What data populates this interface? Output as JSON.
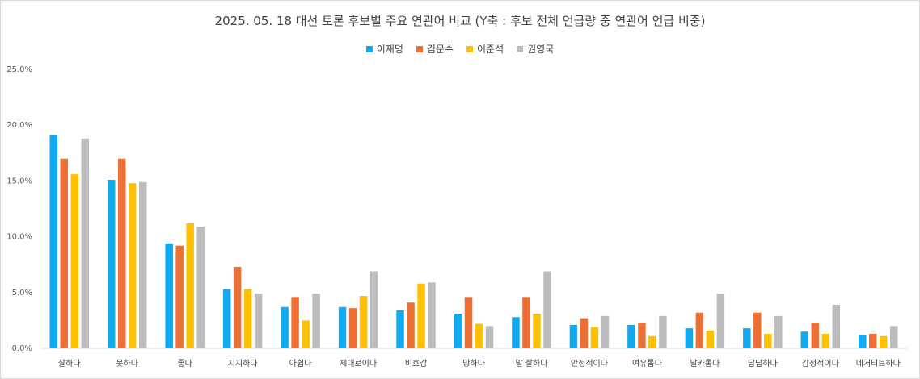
{
  "chart_data": {
    "type": "bar",
    "title": "2025. 05. 18  대선 토론 후보별 주요 연관어 비교 (Y축 : 후보 전체 언급량 중 연관어 언급 비중)",
    "categories": [
      "잘하다",
      "못하다",
      "좋다",
      "지지하다",
      "아쉽다",
      "제대로이다",
      "비호감",
      "망하다",
      "말 잘하다",
      "안정적이다",
      "여유롭다",
      "날카롭다",
      "답답하다",
      "감정적이다",
      "네거티브하다"
    ],
    "series": [
      {
        "name": "이재명",
        "color": "#11aaee",
        "values": [
          19.1,
          15.1,
          9.4,
          5.3,
          3.7,
          3.7,
          3.4,
          3.1,
          2.8,
          2.1,
          2.1,
          1.8,
          1.8,
          1.5,
          1.2
        ]
      },
      {
        "name": "김문수",
        "color": "#ec7035",
        "values": [
          17.0,
          17.0,
          9.2,
          7.3,
          4.6,
          3.6,
          4.1,
          4.6,
          4.6,
          2.7,
          2.3,
          3.2,
          3.2,
          2.3,
          1.3
        ]
      },
      {
        "name": "이준석",
        "color": "#fdc002",
        "values": [
          15.6,
          14.8,
          11.2,
          5.3,
          2.5,
          4.7,
          5.8,
          2.2,
          3.1,
          1.9,
          1.1,
          1.6,
          1.3,
          1.3,
          1.1
        ]
      },
      {
        "name": "권영국",
        "color": "#bcbcbc",
        "values": [
          18.8,
          14.9,
          10.9,
          4.9,
          4.9,
          6.9,
          5.9,
          2.0,
          6.9,
          2.9,
          2.9,
          4.9,
          2.9,
          3.9,
          2.0
        ]
      }
    ],
    "ylim": [
      0,
      25
    ],
    "yticks": [
      "0.0%",
      "5.0%",
      "10.0%",
      "15.0%",
      "20.0%",
      "25.0%"
    ],
    "grid": false,
    "legend_position": "top"
  }
}
